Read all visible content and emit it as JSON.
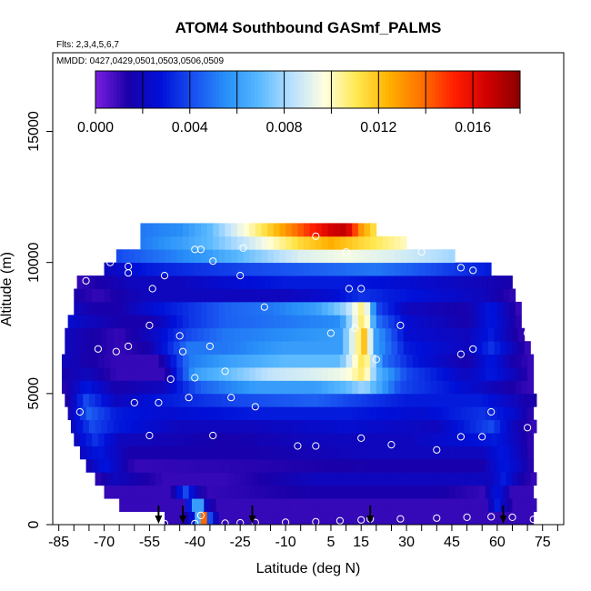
{
  "chart_data": {
    "type": "heatmap",
    "title": "ATOM4 Southbound GASmf_PALMS",
    "subtitle_flights": "Flts: 2,3,4,5,6,7",
    "subtitle_dates": "MMDD: 0427,0429,0501,0503,0506,0509",
    "xlabel": "Latitude (deg N)",
    "ylabel": "Altitude (m)",
    "xlim": [
      -87,
      82
    ],
    "ylim": [
      0,
      18000
    ],
    "x_ticks": [
      -85,
      -70,
      -55,
      -40,
      -25,
      -10,
      5,
      15,
      30,
      45,
      60,
      75
    ],
    "y_ticks": [
      0,
      5000,
      10000,
      15000
    ],
    "colorbar": {
      "min": 0,
      "max": 0.018,
      "tick_values": [
        0,
        0.004,
        0.008,
        0.012,
        0.016
      ],
      "tick_labels": [
        "0.000",
        "0.004",
        "0.008",
        "0.012",
        "0.016"
      ],
      "colors": [
        "#7a1fe0",
        "#1a00a8",
        "#0010d8",
        "#1850f0",
        "#2890f8",
        "#58b8ff",
        "#b8e0ff",
        "#ffffe0",
        "#ffe850",
        "#ffb000",
        "#ff7000",
        "#ff1e00",
        "#d00000",
        "#8a0000"
      ]
    },
    "altitude_bins_m": [
      500,
      1000,
      1500,
      2000,
      2500,
      3000,
      3500,
      4000,
      4500,
      5000,
      5500,
      6000,
      6500,
      7000,
      7500,
      8000,
      8500,
      9000,
      9500,
      10000,
      10500,
      11000,
      11500
    ],
    "lat_extent_by_bin": [
      [
        -50,
        72
      ],
      [
        -65,
        72
      ],
      [
        -70,
        72
      ],
      [
        -73,
        72
      ],
      [
        -76,
        72
      ],
      [
        -78,
        72
      ],
      [
        -80,
        72
      ],
      [
        -81,
        72
      ],
      [
        -82,
        72
      ],
      [
        -83,
        72
      ],
      [
        -84,
        72
      ],
      [
        -84,
        72
      ],
      [
        -84,
        71
      ],
      [
        -83,
        70
      ],
      [
        -83,
        69
      ],
      [
        -82,
        68
      ],
      [
        -80,
        67
      ],
      [
        -80,
        66
      ],
      [
        -79,
        65
      ],
      [
        -70,
        57
      ],
      [
        -66,
        45
      ],
      [
        -58,
        30
      ],
      [
        -58,
        20
      ]
    ],
    "values_by_bin": [
      [
        [
          -50,
          0.001
        ],
        [
          -44,
          0.001
        ],
        [
          -40,
          0.003
        ],
        [
          -37,
          0.014
        ],
        [
          -35,
          0.004
        ],
        [
          -32,
          0.001
        ],
        [
          72,
          0.001
        ]
      ],
      [
        [
          -65,
          0.001
        ],
        [
          -44,
          0.001
        ],
        [
          -41,
          0.004
        ],
        [
          -39,
          0.008
        ],
        [
          -36,
          0.002
        ],
        [
          -33,
          0.001
        ],
        [
          56,
          0.001
        ],
        [
          60,
          0.003
        ],
        [
          65,
          0.001
        ],
        [
          72,
          0.001
        ]
      ],
      [
        [
          -70,
          0.001
        ],
        [
          -48,
          0.001
        ],
        [
          -43,
          0.004
        ],
        [
          -40,
          0.002
        ],
        [
          -36,
          0.001
        ],
        [
          0,
          0.0015
        ],
        [
          40,
          0.0015
        ],
        [
          55,
          0.001
        ],
        [
          60,
          0.003
        ],
        [
          65,
          0.001
        ],
        [
          72,
          0.001
        ]
      ],
      [
        [
          -73,
          0.001
        ],
        [
          -67,
          0.002
        ],
        [
          -50,
          0.001
        ],
        [
          -30,
          0.001
        ],
        [
          0,
          0.002
        ],
        [
          30,
          0.002
        ],
        [
          58,
          0.002
        ],
        [
          62,
          0.003
        ],
        [
          68,
          0.0015
        ],
        [
          72,
          0.001
        ]
      ],
      [
        [
          -76,
          0.0015
        ],
        [
          -70,
          0.003
        ],
        [
          -60,
          0.001
        ],
        [
          -20,
          0.0012
        ],
        [
          20,
          0.0015
        ],
        [
          55,
          0.0015
        ],
        [
          62,
          0.003
        ],
        [
          68,
          0.002
        ],
        [
          72,
          0.001
        ]
      ],
      [
        [
          -78,
          0.002
        ],
        [
          -72,
          0.003
        ],
        [
          -62,
          0.0015
        ],
        [
          -20,
          0.0015
        ],
        [
          20,
          0.002
        ],
        [
          55,
          0.002
        ],
        [
          62,
          0.003
        ],
        [
          72,
          0.001
        ]
      ],
      [
        [
          -80,
          0.002
        ],
        [
          -73,
          0.0035
        ],
        [
          -65,
          0.002
        ],
        [
          -30,
          0.0015
        ],
        [
          0,
          0.002
        ],
        [
          30,
          0.002
        ],
        [
          60,
          0.003
        ],
        [
          72,
          0.001
        ]
      ],
      [
        [
          -81,
          0.002
        ],
        [
          -74,
          0.004
        ],
        [
          -66,
          0.003
        ],
        [
          -45,
          0.002
        ],
        [
          -20,
          0.002
        ],
        [
          10,
          0.0025
        ],
        [
          40,
          0.002
        ],
        [
          58,
          0.004
        ],
        [
          65,
          0.002
        ],
        [
          72,
          0.001
        ]
      ],
      [
        [
          -82,
          0.0015
        ],
        [
          -75,
          0.0045
        ],
        [
          -66,
          0.003
        ],
        [
          -50,
          0.0025
        ],
        [
          -20,
          0.003
        ],
        [
          10,
          0.003
        ],
        [
          35,
          0.0025
        ],
        [
          55,
          0.0035
        ],
        [
          65,
          0.0025
        ],
        [
          72,
          0.001
        ]
      ],
      [
        [
          -83,
          0.001
        ],
        [
          -76,
          0.004
        ],
        [
          -66,
          0.002
        ],
        [
          -50,
          0.003
        ],
        [
          -25,
          0.004
        ],
        [
          0,
          0.0045
        ],
        [
          30,
          0.003
        ],
        [
          55,
          0.003
        ],
        [
          70,
          0.0015
        ]
      ],
      [
        [
          -84,
          0.001
        ],
        [
          -76,
          0.003
        ],
        [
          -66,
          0.0015
        ],
        [
          -50,
          0.002
        ],
        [
          -38,
          0.0045
        ],
        [
          -20,
          0.006
        ],
        [
          0,
          0.006
        ],
        [
          10,
          0.007
        ],
        [
          16,
          0.008
        ],
        [
          28,
          0.004
        ],
        [
          50,
          0.0025
        ],
        [
          70,
          0.001
        ]
      ],
      [
        [
          -84,
          0.0015
        ],
        [
          -76,
          0.002
        ],
        [
          -66,
          0.001
        ],
        [
          -50,
          0.001
        ],
        [
          -40,
          0.006
        ],
        [
          -30,
          0.007
        ],
        [
          -15,
          0.0085
        ],
        [
          0,
          0.009
        ],
        [
          10,
          0.0095
        ],
        [
          16,
          0.011
        ],
        [
          20,
          0.007
        ],
        [
          30,
          0.004
        ],
        [
          50,
          0.002
        ],
        [
          58,
          0.003
        ],
        [
          65,
          0.002
        ],
        [
          71,
          0.001
        ]
      ],
      [
        [
          -84,
          0.002
        ],
        [
          -76,
          0.0015
        ],
        [
          -66,
          0.001
        ],
        [
          -52,
          0.001
        ],
        [
          -42,
          0.005
        ],
        [
          -30,
          0.006
        ],
        [
          -10,
          0.007
        ],
        [
          8,
          0.007
        ],
        [
          16,
          0.0115
        ],
        [
          22,
          0.005
        ],
        [
          32,
          0.003
        ],
        [
          50,
          0.0015
        ],
        [
          58,
          0.003
        ],
        [
          65,
          0.0015
        ],
        [
          71,
          0.001
        ]
      ],
      [
        [
          -83,
          0.002
        ],
        [
          -75,
          0.0015
        ],
        [
          -65,
          0.001
        ],
        [
          -55,
          0.0015
        ],
        [
          -42,
          0.005
        ],
        [
          -30,
          0.005
        ],
        [
          -10,
          0.006
        ],
        [
          8,
          0.006
        ],
        [
          16,
          0.012
        ],
        [
          20,
          0.006
        ],
        [
          30,
          0.003
        ],
        [
          50,
          0.002
        ],
        [
          58,
          0.0035
        ],
        [
          65,
          0.002
        ],
        [
          70,
          0.001
        ]
      ],
      [
        [
          -83,
          0.002
        ],
        [
          -75,
          0.0015
        ],
        [
          -65,
          0.001
        ],
        [
          -55,
          0.002
        ],
        [
          -42,
          0.004
        ],
        [
          -30,
          0.005
        ],
        [
          -10,
          0.0055
        ],
        [
          8,
          0.006
        ],
        [
          16,
          0.012
        ],
        [
          20,
          0.006
        ],
        [
          30,
          0.0025
        ],
        [
          50,
          0.002
        ],
        [
          58,
          0.003
        ],
        [
          65,
          0.0015
        ],
        [
          69,
          0.001
        ]
      ],
      [
        [
          -82,
          0.0025
        ],
        [
          -75,
          0.002
        ],
        [
          -65,
          0.0015
        ],
        [
          -55,
          0.0015
        ],
        [
          -42,
          0.0035
        ],
        [
          -30,
          0.0045
        ],
        [
          -10,
          0.005
        ],
        [
          8,
          0.0055
        ],
        [
          16,
          0.0115
        ],
        [
          20,
          0.005
        ],
        [
          30,
          0.0025
        ],
        [
          50,
          0.0015
        ],
        [
          58,
          0.003
        ],
        [
          68,
          0.001
        ]
      ],
      [
        [
          -80,
          0.002
        ],
        [
          -74,
          0.0015
        ],
        [
          -65,
          0.0015
        ],
        [
          -55,
          0.0025
        ],
        [
          -42,
          0.0035
        ],
        [
          -30,
          0.0045
        ],
        [
          -15,
          0.005
        ],
        [
          0,
          0.006
        ],
        [
          10,
          0.008
        ],
        [
          16,
          0.011
        ],
        [
          20,
          0.004
        ],
        [
          30,
          0.002
        ],
        [
          50,
          0.0015
        ],
        [
          58,
          0.003
        ],
        [
          67,
          0.001
        ]
      ],
      [
        [
          -80,
          0.0015
        ],
        [
          -72,
          0.001
        ],
        [
          -65,
          0.0015
        ],
        [
          -55,
          0.002
        ],
        [
          -42,
          0.002
        ],
        [
          -30,
          0.002
        ],
        [
          -10,
          0.002
        ],
        [
          5,
          0.0025
        ],
        [
          15,
          0.0035
        ],
        [
          25,
          0.003
        ],
        [
          40,
          0.0025
        ],
        [
          55,
          0.002
        ],
        [
          66,
          0.001
        ]
      ],
      [
        [
          -79,
          0.001
        ],
        [
          -70,
          0.0015
        ],
        [
          -60,
          0.002
        ],
        [
          -45,
          0.002
        ],
        [
          -30,
          0.0025
        ],
        [
          -10,
          0.003
        ],
        [
          10,
          0.003
        ],
        [
          30,
          0.0025
        ],
        [
          50,
          0.002
        ],
        [
          65,
          0.0015
        ]
      ],
      [
        [
          -70,
          0.002
        ],
        [
          -55,
          0.003
        ],
        [
          -40,
          0.0035
        ],
        [
          -20,
          0.004
        ],
        [
          0,
          0.0045
        ],
        [
          20,
          0.005
        ],
        [
          40,
          0.004
        ],
        [
          57,
          0.003
        ]
      ],
      [
        [
          -66,
          0.004
        ],
        [
          -50,
          0.005
        ],
        [
          -35,
          0.006
        ],
        [
          -20,
          0.0075
        ],
        [
          -5,
          0.009
        ],
        [
          10,
          0.0095
        ],
        [
          25,
          0.009
        ],
        [
          45,
          0.008
        ]
      ],
      [
        [
          -58,
          0.005
        ],
        [
          -45,
          0.006
        ],
        [
          -35,
          0.007
        ],
        [
          -20,
          0.009
        ],
        [
          -5,
          0.0115
        ],
        [
          5,
          0.0125
        ],
        [
          15,
          0.0115
        ],
        [
          30,
          0.01
        ]
      ],
      [
        [
          -58,
          0.005
        ],
        [
          -45,
          0.0055
        ],
        [
          -35,
          0.007
        ],
        [
          -20,
          0.0105
        ],
        [
          -10,
          0.013
        ],
        [
          -2,
          0.015
        ],
        [
          5,
          0.0165
        ],
        [
          10,
          0.017
        ],
        [
          15,
          0.013
        ],
        [
          20,
          0.011
        ]
      ]
    ],
    "sample_points": [
      [
        -68,
        12
      ],
      [
        -60,
        25
      ],
      [
        -50,
        40
      ],
      [
        -40,
        40
      ],
      [
        -30,
        55
      ],
      [
        -25,
        70
      ],
      [
        -20,
        80
      ],
      [
        -10,
        90
      ],
      [
        0,
        110
      ],
      [
        8,
        150
      ],
      [
        15,
        180
      ],
      [
        18,
        210
      ],
      [
        28,
        220
      ],
      [
        40,
        250
      ],
      [
        50,
        280
      ],
      [
        58,
        300
      ],
      [
        65,
        280
      ],
      [
        72,
        200
      ],
      [
        -62,
        330
      ],
      [
        -38,
        350
      ],
      [
        -34,
        3400
      ],
      [
        -55,
        3400
      ],
      [
        -6,
        3000
      ],
      [
        0,
        3000
      ],
      [
        15,
        3300
      ],
      [
        25,
        3050
      ],
      [
        40,
        2850
      ],
      [
        48,
        3350
      ],
      [
        55,
        3350
      ],
      [
        -78,
        4300
      ],
      [
        -60,
        4650
      ],
      [
        -52,
        4650
      ],
      [
        -42,
        4850
      ],
      [
        -28,
        4850
      ],
      [
        -20,
        4500
      ],
      [
        58,
        4300
      ],
      [
        70,
        3700
      ],
      [
        -86,
        5600
      ],
      [
        -48,
        5550
      ],
      [
        -40,
        5600
      ],
      [
        -30,
        5850
      ],
      [
        20,
        6300
      ],
      [
        -72,
        6700
      ],
      [
        -66,
        6600
      ],
      [
        -62,
        6800
      ],
      [
        -44,
        6600
      ],
      [
        -35,
        6800
      ],
      [
        5,
        7300
      ],
      [
        13,
        7500
      ],
      [
        28,
        7600
      ],
      [
        48,
        6500
      ],
      [
        52,
        6700
      ],
      [
        70,
        7300
      ],
      [
        -55,
        7600
      ],
      [
        -45,
        7200
      ],
      [
        -82,
        9500
      ],
      [
        -76,
        9300
      ],
      [
        -62,
        9600
      ],
      [
        -54,
        9000
      ],
      [
        -50,
        9500
      ],
      [
        -25,
        9500
      ],
      [
        -17,
        8300
      ],
      [
        11,
        9000
      ],
      [
        15,
        9000
      ],
      [
        -68,
        10000
      ],
      [
        -62,
        9850
      ],
      [
        -34,
        10050
      ],
      [
        -38,
        10500
      ],
      [
        -24,
        10550
      ],
      [
        -40,
        10500
      ],
      [
        0,
        11000
      ],
      [
        10,
        10400
      ],
      [
        35,
        10400
      ],
      [
        48,
        9800
      ],
      [
        52,
        9700
      ],
      [
        -66,
        10800
      ],
      [
        -50,
        11700
      ],
      [
        -3,
        11700
      ],
      [
        20,
        11700
      ]
    ],
    "arrow_latitudes": [
      -52,
      -44,
      -21,
      18,
      62
    ]
  }
}
